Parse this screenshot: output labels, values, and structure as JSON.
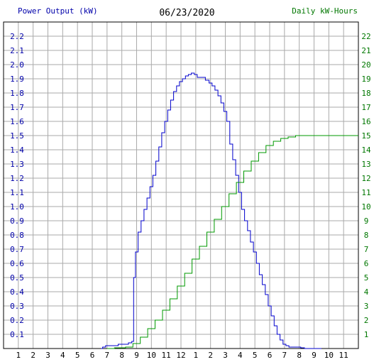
{
  "header": {
    "left_label": "Power Output (kW)",
    "date": "06/23/2020",
    "right_label": "Daily kW-Hours"
  },
  "colors": {
    "power": "#0000cc",
    "energy": "#009900",
    "grid": "#aaaaaa",
    "left_axis_text": "#0000aa",
    "right_axis_text": "#007700"
  },
  "chart_data": {
    "type": "line",
    "title": "06/23/2020",
    "x_ticks": [
      "1",
      "2",
      "3",
      "4",
      "5",
      "6",
      "7",
      "8",
      "9",
      "10",
      "11",
      "12",
      "1",
      "2",
      "3",
      "4",
      "5",
      "6",
      "7",
      "8",
      "9",
      "10",
      "11"
    ],
    "y_left": {
      "label": "Power Output (kW)",
      "range": [
        0,
        2.3
      ],
      "ticks": [
        "0.1",
        "0.2",
        "0.3",
        "0.4",
        "0.5",
        "0.6",
        "0.7",
        "0.8",
        "0.9",
        "1.0",
        "1.1",
        "1.2",
        "1.3",
        "1.4",
        "1.5",
        "1.6",
        "1.7",
        "1.8",
        "1.9",
        "2.0",
        "2.1",
        "2.2"
      ]
    },
    "y_right": {
      "label": "Daily kW-Hours",
      "range": [
        0,
        23
      ],
      "ticks": [
        "1",
        "2",
        "3",
        "4",
        "5",
        "6",
        "7",
        "8",
        "9",
        "10",
        "11",
        "12",
        "13",
        "14",
        "15",
        "16",
        "17",
        "18",
        "19",
        "20",
        "21",
        "22"
      ]
    },
    "x_range_hours": [
      0,
      24
    ],
    "grid": true,
    "series": [
      {
        "name": "Power Output (kW)",
        "axis": "left",
        "x_hours": [
          6.6,
          6.8,
          7.0,
          7.5,
          8.0,
          8.3,
          8.6,
          8.75,
          8.85,
          9.0,
          9.2,
          9.4,
          9.6,
          9.8,
          10.0,
          10.2,
          10.4,
          10.6,
          10.8,
          11.0,
          11.2,
          11.4,
          11.6,
          11.8,
          12.0,
          12.2,
          12.4,
          12.6,
          12.8,
          13.0,
          13.2,
          13.5,
          13.8,
          14.0,
          14.2,
          14.4,
          14.6,
          14.8,
          15.0,
          15.2,
          15.4,
          15.6,
          15.8,
          16.0,
          16.2,
          16.4,
          16.6,
          16.8,
          17.0,
          17.2,
          17.4,
          17.6,
          17.8,
          18.0,
          18.2,
          18.4,
          18.6,
          18.8,
          19.0,
          19.2,
          19.4,
          19.6,
          19.8,
          20.0,
          20.2,
          20.5,
          21.0,
          21.5
        ],
        "values": [
          0.0,
          0.01,
          0.02,
          0.02,
          0.03,
          0.03,
          0.04,
          0.05,
          0.5,
          0.68,
          0.82,
          0.9,
          0.98,
          1.06,
          1.14,
          1.22,
          1.32,
          1.42,
          1.52,
          1.6,
          1.68,
          1.75,
          1.81,
          1.85,
          1.88,
          1.9,
          1.92,
          1.93,
          1.94,
          1.93,
          1.91,
          1.91,
          1.89,
          1.87,
          1.85,
          1.82,
          1.78,
          1.73,
          1.67,
          1.6,
          1.44,
          1.33,
          1.22,
          1.1,
          0.98,
          0.9,
          0.83,
          0.75,
          0.68,
          0.6,
          0.52,
          0.45,
          0.38,
          0.3,
          0.23,
          0.16,
          0.1,
          0.06,
          0.03,
          0.02,
          0.01,
          0.01,
          0.01,
          0.01,
          0.005,
          0.0,
          0.0,
          0.0
        ]
      },
      {
        "name": "Daily kW-Hours",
        "axis": "right",
        "x_hours": [
          7.0,
          8.0,
          8.5,
          9.0,
          9.5,
          10.0,
          10.5,
          11.0,
          11.5,
          12.0,
          12.5,
          13.0,
          13.5,
          14.0,
          14.5,
          15.0,
          15.5,
          16.0,
          16.5,
          17.0,
          17.5,
          18.0,
          18.5,
          19.0,
          19.5,
          20.0,
          20.5,
          21.0,
          21.5,
          22.0,
          22.5,
          23.0,
          23.5,
          24.0
        ],
        "values": [
          0.0,
          0.05,
          0.1,
          0.35,
          0.8,
          1.4,
          2.0,
          2.7,
          3.5,
          4.4,
          5.3,
          6.3,
          7.2,
          8.2,
          9.1,
          10.0,
          10.9,
          11.7,
          12.5,
          13.2,
          13.8,
          14.3,
          14.6,
          14.8,
          14.9,
          15.0,
          15.0,
          15.0,
          15.0,
          15.0,
          15.0,
          15.0,
          15.0,
          15.0
        ]
      }
    ]
  }
}
